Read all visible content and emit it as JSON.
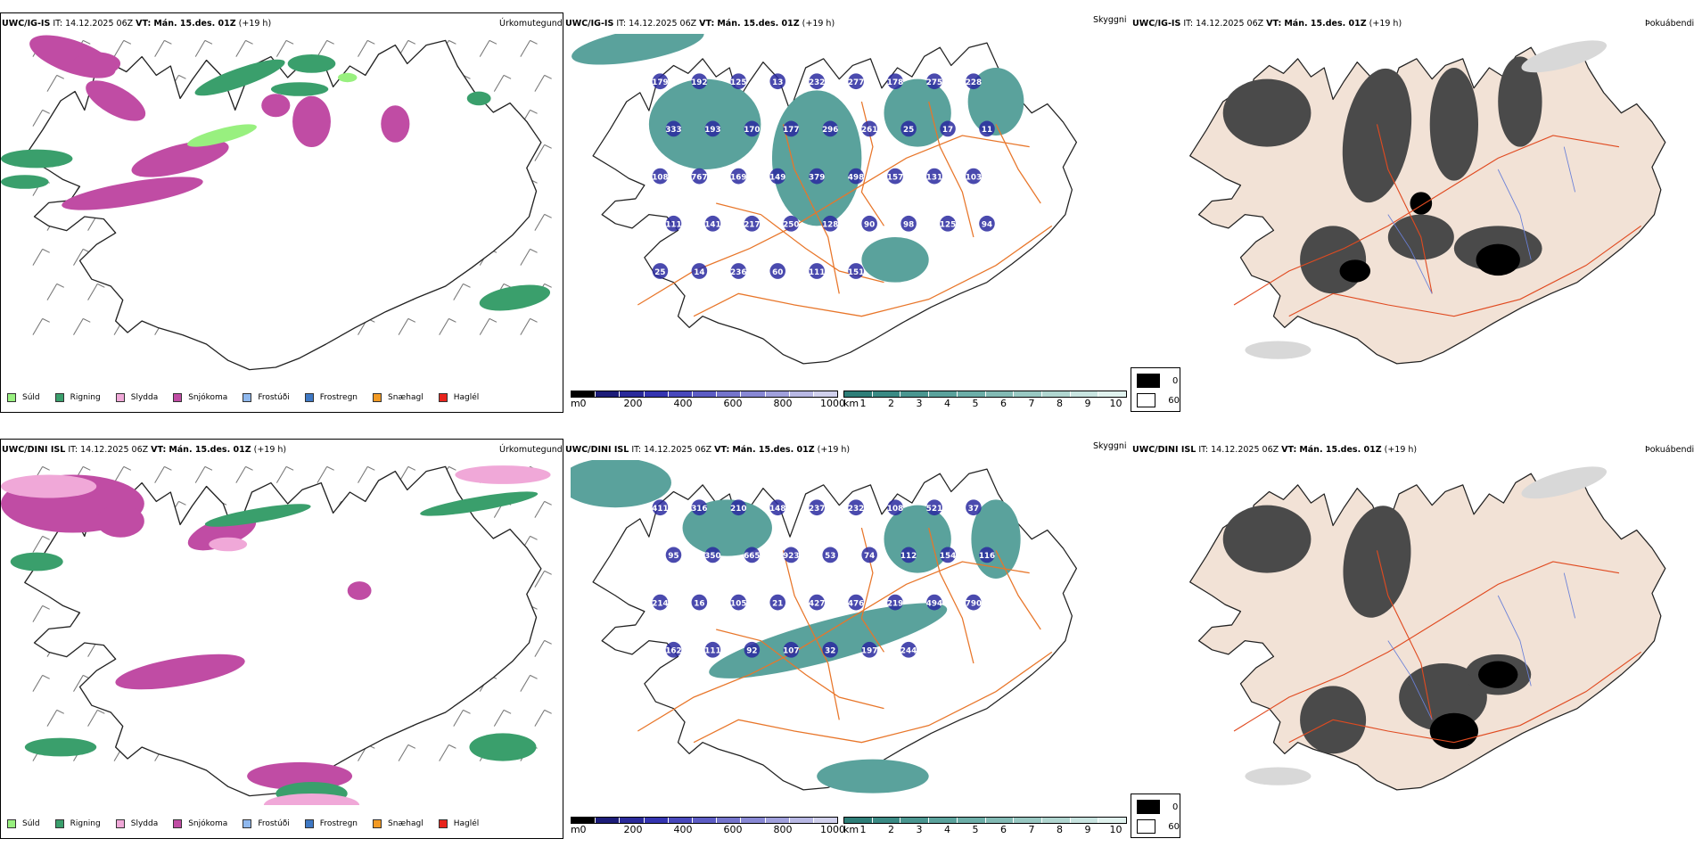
{
  "rows": [
    {
      "model": "UWC/IG-IS",
      "it_label": "IT:",
      "it_value": "14.12.2025 06Z",
      "vt_label": "VT:",
      "vt_value": "Mán. 15.des. 01Z",
      "lead": "(+19 h)",
      "panel1_title": "Úrkomutegund",
      "panel2_title": "Skyggni",
      "panel3_title": "Þokuábendi",
      "visibility_labels": [
        "179",
        "192",
        "125",
        "13",
        "232",
        "277",
        "178",
        "275",
        "228",
        "333",
        "193",
        "170",
        "177",
        "296",
        "261",
        "25",
        "17",
        "11",
        "108",
        "767",
        "169",
        "149",
        "379",
        "498",
        "157",
        "131",
        "103",
        "111",
        "141",
        "217",
        "250",
        "128",
        "90",
        "98",
        "125",
        "94",
        "25",
        "14",
        "236",
        "60",
        "111",
        "151"
      ]
    },
    {
      "model": "UWC/DINI ISL",
      "it_label": "IT:",
      "it_value": "14.12.2025 06Z",
      "vt_label": "VT:",
      "vt_value": "Mán. 15.des. 01Z",
      "lead": "(+19 h)",
      "panel1_title": "Úrkomutegund",
      "panel2_title": "Skyggni",
      "panel3_title": "Þokuábendi",
      "visibility_labels": [
        "411",
        "316",
        "210",
        "148",
        "237",
        "232",
        "108",
        "521",
        "37",
        "95",
        "350",
        "665",
        "923",
        "53",
        "74",
        "112",
        "154",
        "116",
        "214",
        "16",
        "105",
        "21",
        "427",
        "476",
        "219",
        "494",
        "790",
        "162",
        "111",
        "92",
        "107",
        "32",
        "197",
        "244"
      ]
    }
  ],
  "precip_legend": [
    {
      "label": "Súld",
      "color": "#98f07f"
    },
    {
      "label": "Rigning",
      "color": "#3a9f6c"
    },
    {
      "label": "Slydda",
      "color": "#f0a8d8"
    },
    {
      "label": "Snjókoma",
      "color": "#c04ca4"
    },
    {
      "label": "Frostúði",
      "color": "#8fb8ee"
    },
    {
      "label": "Frostregn",
      "color": "#3e78c4"
    },
    {
      "label": "Snæhagl",
      "color": "#f29a24"
    },
    {
      "label": "Haglél",
      "color": "#e8241c"
    }
  ],
  "height_bar": {
    "unit": "m",
    "ticks": [
      "0",
      "200",
      "400",
      "600",
      "800",
      "1000"
    ],
    "colors": [
      "#000000",
      "#1c1c78",
      "#2a2a9a",
      "#3434b0",
      "#4848bc",
      "#5c5cc4",
      "#7474cc",
      "#8888d4",
      "#a0a0dc",
      "#b8b8e4",
      "#d0d0ec"
    ]
  },
  "vis_bar": {
    "unit": "km",
    "ticks": [
      "1",
      "2",
      "3",
      "4",
      "5",
      "6",
      "7",
      "8",
      "9",
      "10"
    ],
    "colors": [
      "#2e7e78",
      "#3a8a84",
      "#4a9690",
      "#5aa29c",
      "#6caea8",
      "#82bab4",
      "#98c8c2",
      "#b0d6d0",
      "#c8e4e0",
      "#e0f2ee"
    ]
  },
  "cover_legend": [
    {
      "label": "0",
      "color": "#000000"
    },
    {
      "label": "60",
      "color": "#ffffff"
    }
  ],
  "colors": {
    "rain": "#3a9f6c",
    "snow": "#c04ca4",
    "sleet": "#f0a8d8",
    "drizzle": "#98f07f",
    "fogfill": "#5aa29c",
    "road": "#e8762a",
    "land": "#f2e2d6"
  }
}
